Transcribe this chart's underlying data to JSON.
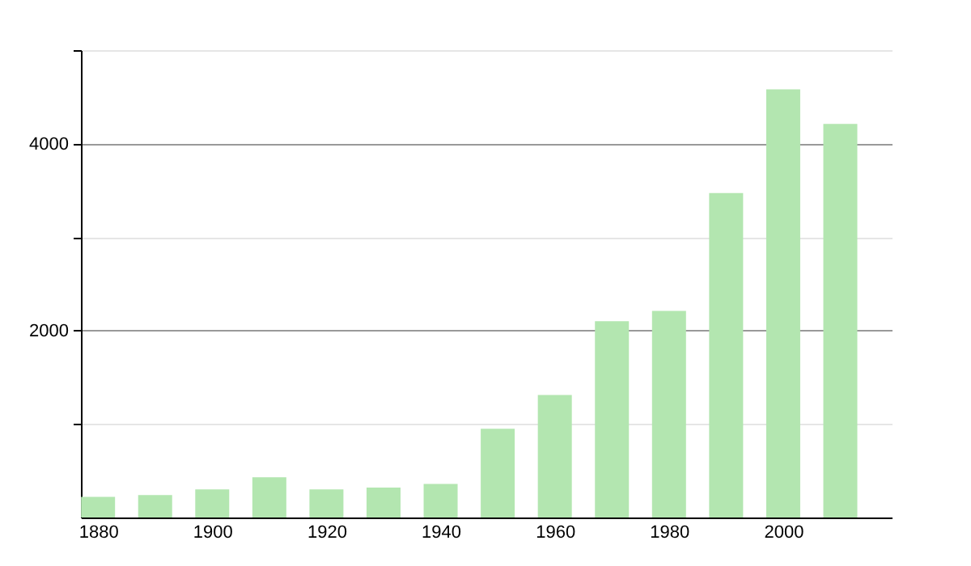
{
  "chart_data": {
    "type": "bar",
    "x": [
      1880,
      1890,
      1900,
      1910,
      1920,
      1930,
      1940,
      1950,
      1960,
      1970,
      1980,
      1990,
      2000,
      2010
    ],
    "values": [
      220,
      240,
      300,
      430,
      300,
      320,
      360,
      950,
      1310,
      2100,
      2210,
      3470,
      4580,
      4210
    ],
    "color": "#b3e6b0",
    "xlim": [
      1877,
      2019
    ],
    "xticks": [
      1880,
      1900,
      1920,
      1940,
      1960,
      1980,
      2000
    ],
    "ylim": [
      0,
      5000
    ],
    "yticks": [
      {
        "value": 1000,
        "label": null
      },
      2000,
      {
        "value": 3000,
        "label": null
      },
      4000,
      {
        "value": 5000,
        "label": null
      }
    ],
    "grid": "y"
  }
}
